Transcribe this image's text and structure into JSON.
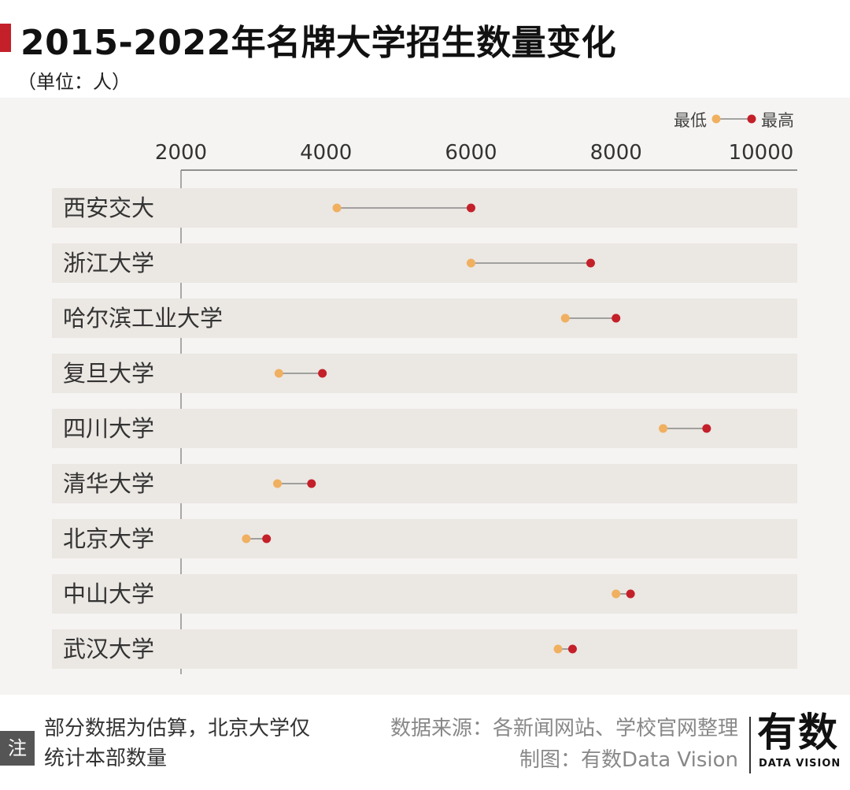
{
  "header": {
    "title": "2015-2022年名牌大学招生数量变化",
    "unit": "（单位：人）"
  },
  "chart_data": {
    "type": "dumbbell",
    "title": "2015-2022年名牌大学招生数量变化",
    "xlabel": "",
    "ylabel": "",
    "xlim": [
      2000,
      10500
    ],
    "xticks": [
      2000,
      4000,
      6000,
      8000,
      10000
    ],
    "legend": {
      "low_label": "最低",
      "high_label": "最高",
      "position": "top-right"
    },
    "colors": {
      "low": "#f0b060",
      "high": "#c4202a",
      "line": "#888888",
      "band": "#ebe7e3"
    },
    "categories": [
      "西安交大",
      "浙江大学",
      "哈尔滨工业大学",
      "复旦大学",
      "四川大学",
      "清华大学",
      "北京大学",
      "中山大学",
      "武汉大学"
    ],
    "series": [
      {
        "name": "最低",
        "values": [
          4150,
          6000,
          7300,
          3350,
          8650,
          3330,
          2900,
          8000,
          7200
        ]
      },
      {
        "name": "最高",
        "values": [
          6000,
          7650,
          8000,
          3950,
          9250,
          3800,
          3180,
          8200,
          7400
        ]
      }
    ]
  },
  "footer": {
    "note_label": "注",
    "note": "部分数据为估算，北京大学仅统计本部数量",
    "source": "数据来源：各新闻网站、学校官网整理",
    "maker": "制图：有数Data Vision",
    "logo_main": "有数",
    "logo_sub": "DATA VISION"
  }
}
